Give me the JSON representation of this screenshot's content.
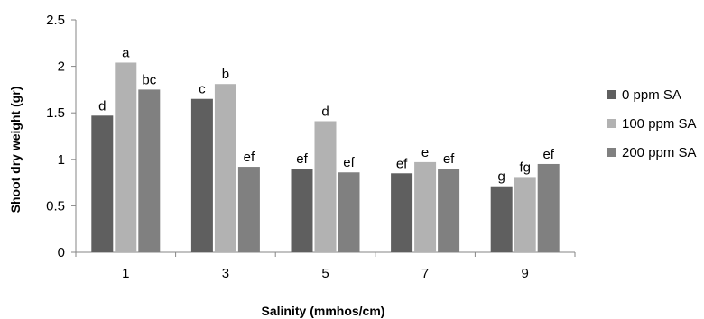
{
  "chart_data": {
    "type": "bar",
    "title": "",
    "xlabel": "Salinity (mmhos/cm)",
    "ylabel": "Shoot dry weight (gr)",
    "ylim": [
      0,
      2.5
    ],
    "yticks": [
      "0",
      "0.5",
      "1",
      "1.5",
      "2",
      "2.5"
    ],
    "categories": [
      "1",
      "3",
      "5",
      "7",
      "9"
    ],
    "grid": false,
    "legend_position": "right",
    "series": [
      {
        "name": "0 ppm SA",
        "color": "#5f5f5f",
        "values": [
          1.47,
          1.65,
          0.9,
          0.85,
          0.71
        ],
        "labels": [
          "d",
          "c",
          "ef",
          "ef",
          "g"
        ]
      },
      {
        "name": "100 ppm SA",
        "color": "#b2b2b2",
        "values": [
          2.04,
          1.81,
          1.41,
          0.97,
          0.81
        ],
        "labels": [
          "a",
          "b",
          "d",
          "e",
          "fg"
        ]
      },
      {
        "name": "200 ppm SA",
        "color": "#808080",
        "values": [
          1.75,
          0.92,
          0.86,
          0.9,
          0.95
        ],
        "labels": [
          "bc",
          "ef",
          "ef",
          "ef",
          "ef"
        ]
      }
    ]
  }
}
